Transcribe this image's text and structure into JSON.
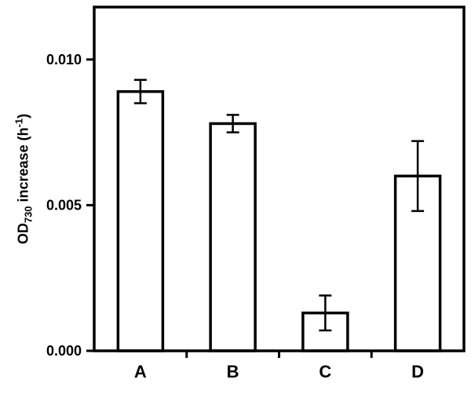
{
  "figure": {
    "background": "#ffffff"
  },
  "chart_data": {
    "type": "bar",
    "title": "",
    "categories": [
      "A",
      "B",
      "C",
      "D"
    ],
    "values": [
      0.0089,
      0.0078,
      0.0013,
      0.006
    ],
    "error_bars": [
      0.0004,
      0.0003,
      0.0006,
      0.0012
    ],
    "xlabel": "",
    "ylabel": "OD730 increase (h-1)",
    "ylabel_parts": {
      "p0": "OD",
      "sub": "730",
      "p1": " increase (h",
      "sup": "-1",
      "p2": ")"
    },
    "yticks": [
      {
        "value": 0.0,
        "label": "0.000"
      },
      {
        "value": 0.005,
        "label": "0.005"
      },
      {
        "value": 0.01,
        "label": "0.010"
      }
    ],
    "ylim": [
      0,
      0.0118
    ],
    "grid": false,
    "legend": null,
    "bar_fill": "#ffffff",
    "bar_stroke": "#000000",
    "axis_color": "#000000",
    "text_color": "#000000"
  }
}
